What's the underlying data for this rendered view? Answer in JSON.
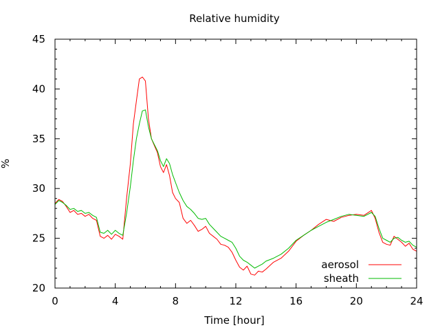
{
  "chart_data": {
    "type": "line",
    "title": "Relative humidity",
    "xlabel": "Time [hour]",
    "ylabel": "%",
    "xlim": [
      0,
      24
    ],
    "ylim": [
      20,
      45
    ],
    "x_ticks": [
      0,
      4,
      8,
      12,
      16,
      20,
      24
    ],
    "y_ticks": [
      20,
      25,
      30,
      35,
      40,
      45
    ],
    "x_minor_step": 1,
    "y_minor_step": 1,
    "grid": false,
    "legend_position": "bottom-right",
    "series": [
      {
        "name": "aerosol",
        "color": "#ff0000",
        "x": [
          0,
          0.25,
          0.5,
          0.75,
          1,
          1.25,
          1.5,
          1.75,
          2,
          2.25,
          2.5,
          2.75,
          3,
          3.25,
          3.5,
          3.75,
          4,
          4.25,
          4.5,
          4.75,
          5,
          5.2,
          5.4,
          5.6,
          5.8,
          6,
          6.2,
          6.4,
          6.6,
          6.8,
          7,
          7.2,
          7.4,
          7.6,
          7.8,
          8,
          8.25,
          8.5,
          8.75,
          9,
          9.25,
          9.5,
          9.75,
          10,
          10.25,
          10.5,
          10.75,
          11,
          11.25,
          11.5,
          11.75,
          12,
          12.25,
          12.5,
          12.75,
          13,
          13.25,
          13.5,
          13.75,
          14,
          14.5,
          15,
          15.5,
          16,
          16.5,
          17,
          17.5,
          18,
          18.5,
          19,
          19.5,
          20,
          20.5,
          21,
          21.25,
          21.5,
          21.75,
          22,
          22.25,
          22.5,
          22.75,
          23,
          23.25,
          23.5,
          23.75,
          24
        ],
        "values": [
          28.5,
          28.9,
          28.7,
          28.2,
          27.6,
          27.8,
          27.4,
          27.5,
          27.2,
          27.4,
          27.0,
          26.8,
          25.2,
          25.0,
          25.3,
          24.9,
          25.4,
          25.2,
          24.9,
          29.0,
          32.5,
          36.5,
          38.8,
          41.0,
          41.2,
          40.8,
          37.0,
          35.0,
          34.3,
          33.6,
          32.2,
          31.6,
          32.4,
          31.3,
          29.6,
          29.0,
          28.6,
          27.0,
          26.5,
          26.8,
          26.3,
          25.7,
          25.9,
          26.2,
          25.5,
          25.2,
          24.9,
          24.4,
          24.3,
          24.1,
          23.6,
          22.8,
          22.1,
          21.8,
          22.2,
          21.4,
          21.3,
          21.7,
          21.6,
          21.9,
          22.6,
          23.0,
          23.7,
          24.7,
          25.3,
          25.8,
          26.4,
          26.9,
          26.7,
          27.1,
          27.3,
          27.4,
          27.3,
          27.8,
          27.0,
          25.6,
          24.6,
          24.4,
          24.3,
          25.2,
          24.9,
          24.6,
          24.2,
          24.5,
          23.9,
          23.7
        ]
      },
      {
        "name": "sheath",
        "color": "#00bb00",
        "x": [
          0,
          0.25,
          0.5,
          0.75,
          1,
          1.25,
          1.5,
          1.75,
          2,
          2.25,
          2.5,
          2.75,
          3,
          3.25,
          3.5,
          3.75,
          4,
          4.25,
          4.5,
          4.75,
          5,
          5.2,
          5.4,
          5.6,
          5.8,
          6,
          6.2,
          6.4,
          6.6,
          6.8,
          7,
          7.2,
          7.4,
          7.6,
          7.8,
          8,
          8.25,
          8.5,
          8.75,
          9,
          9.25,
          9.5,
          9.75,
          10,
          10.25,
          10.5,
          10.75,
          11,
          11.25,
          11.5,
          11.75,
          12,
          12.25,
          12.5,
          12.75,
          13,
          13.25,
          13.5,
          13.75,
          14,
          14.5,
          15,
          15.5,
          16,
          16.5,
          17,
          17.5,
          18,
          18.5,
          19,
          19.5,
          20,
          20.5,
          21,
          21.25,
          21.5,
          21.75,
          22,
          22.25,
          22.5,
          22.75,
          23,
          23.25,
          23.5,
          23.75,
          24
        ],
        "values": [
          28.4,
          28.8,
          28.6,
          28.3,
          27.9,
          28.0,
          27.7,
          27.8,
          27.5,
          27.6,
          27.3,
          27.1,
          25.6,
          25.5,
          25.8,
          25.4,
          25.8,
          25.5,
          25.3,
          27.5,
          30.2,
          32.8,
          35.0,
          36.5,
          37.8,
          37.9,
          36.2,
          35.0,
          34.4,
          33.8,
          32.8,
          32.2,
          33.0,
          32.5,
          31.4,
          30.6,
          29.6,
          28.8,
          28.2,
          27.9,
          27.5,
          27.0,
          26.9,
          27.0,
          26.4,
          26.0,
          25.6,
          25.2,
          25.0,
          24.8,
          24.6,
          24.0,
          23.2,
          22.8,
          22.6,
          22.3,
          22.0,
          22.2,
          22.4,
          22.7,
          23.0,
          23.4,
          24.0,
          24.8,
          25.3,
          25.8,
          26.2,
          26.6,
          26.9,
          27.2,
          27.4,
          27.3,
          27.2,
          27.6,
          27.2,
          26.0,
          25.0,
          24.8,
          24.6,
          25.0,
          25.1,
          24.8,
          24.6,
          24.7,
          24.3,
          24.1
        ]
      }
    ]
  }
}
